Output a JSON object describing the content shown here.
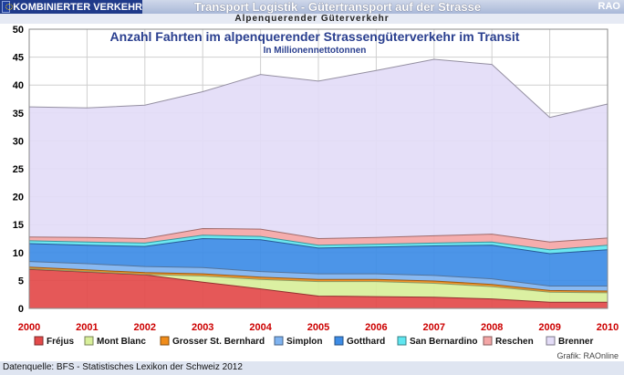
{
  "header": {
    "badge": "KOMBINIERTER VERKEHR",
    "title": "Transport Logistik - Gütertransport auf der Strasse",
    "rao": "RAO",
    "subtitle": "Alpenquerender Güterverkehr"
  },
  "footer": {
    "source": "Datenquelle: BFS - Statistisches Lexikon der Schweiz 2012",
    "credit": "Grafik: RAOnline"
  },
  "chart_data": {
    "type": "area",
    "stacked": true,
    "title": "Anzahl Fahrten im alpenquerender Strassengüterverkehr im Transit",
    "subtitle": "In Millionennettotonnen",
    "xlabel": "",
    "ylabel": "",
    "categories": [
      "2000",
      "2001",
      "2002",
      "2003",
      "2004",
      "2005",
      "2006",
      "2007",
      "2008",
      "2009",
      "2010"
    ],
    "ylim": [
      0,
      50
    ],
    "yticks": [
      "0",
      "5",
      "10",
      "15",
      "20",
      "25",
      "30",
      "35",
      "40",
      "45",
      "50"
    ],
    "grid": true,
    "legend_position": "bottom",
    "series": [
      {
        "name": "Fréjus",
        "color": "#e34a4a",
        "values": [
          7.0,
          6.5,
          6.0,
          4.7,
          3.5,
          2.2,
          2.1,
          2.0,
          1.7,
          1.1,
          1.1
        ]
      },
      {
        "name": "Mont Blanc",
        "color": "#d8ef9a",
        "values": [
          0.1,
          0.1,
          0.1,
          1.1,
          1.7,
          2.6,
          2.7,
          2.5,
          2.2,
          1.8,
          1.7
        ]
      },
      {
        "name": "Grosser St. Bernhard",
        "color": "#f08c1a",
        "values": [
          0.3,
          0.3,
          0.3,
          0.4,
          0.4,
          0.4,
          0.4,
          0.4,
          0.4,
          0.3,
          0.3
        ]
      },
      {
        "name": "Simplon",
        "color": "#7fb3f0",
        "values": [
          1.0,
          1.1,
          1.1,
          1.1,
          1.0,
          1.0,
          1.0,
          1.0,
          1.0,
          0.8,
          0.9
        ]
      },
      {
        "name": "Gotthard",
        "color": "#3d8ce6",
        "values": [
          3.2,
          3.3,
          3.6,
          5.2,
          5.7,
          4.6,
          4.8,
          5.3,
          6.0,
          5.8,
          6.5
        ]
      },
      {
        "name": "San Bernardino",
        "color": "#5fe6f0",
        "values": [
          0.5,
          0.6,
          0.6,
          0.6,
          0.6,
          0.5,
          0.5,
          0.5,
          0.6,
          0.7,
          0.8
        ]
      },
      {
        "name": "Reschen",
        "color": "#f4a6a6",
        "values": [
          0.7,
          0.8,
          0.8,
          1.2,
          1.3,
          1.2,
          1.2,
          1.3,
          1.4,
          1.4,
          1.3
        ]
      },
      {
        "name": "Brenner",
        "color": "#e3dcf7",
        "values": [
          23.3,
          23.2,
          23.9,
          24.5,
          27.7,
          28.2,
          29.9,
          31.6,
          30.4,
          22.3,
          24.0
        ]
      }
    ]
  }
}
